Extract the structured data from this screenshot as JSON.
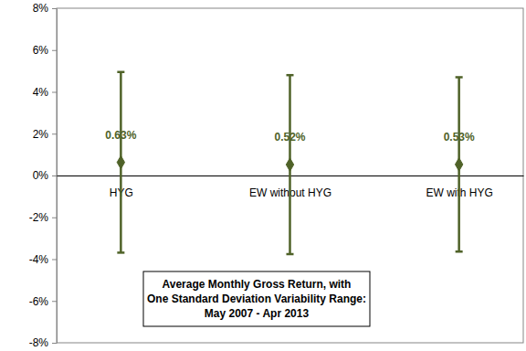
{
  "chart_data": {
    "type": "errorbar",
    "title": [
      "Average Monthly Gross Return, with",
      "One Standard Deviation Variability Range:",
      "May 2007 - Apr 2013"
    ],
    "categories": [
      "HYG",
      "EW without HYG",
      "EW with HYG"
    ],
    "values": [
      0.63,
      0.52,
      0.53
    ],
    "value_labels": [
      "0.63%",
      "0.52%",
      "0.53%"
    ],
    "errors": [
      4.32,
      4.28,
      4.17
    ],
    "color": "#4f6228",
    "marker": "diamond",
    "data_labels": true,
    "grid": false,
    "ylim": [
      -8,
      8
    ],
    "yticks": [
      {
        "value": -8,
        "label": "-8%"
      },
      {
        "value": -6,
        "label": "-6%"
      },
      {
        "value": -4,
        "label": "-4%"
      },
      {
        "value": -2,
        "label": "-2%"
      },
      {
        "value": 0,
        "label": "0%"
      },
      {
        "value": 2,
        "label": "2%"
      },
      {
        "value": 4,
        "label": "4%"
      },
      {
        "value": 6,
        "label": "6%"
      },
      {
        "value": 8,
        "label": "8%"
      }
    ]
  }
}
